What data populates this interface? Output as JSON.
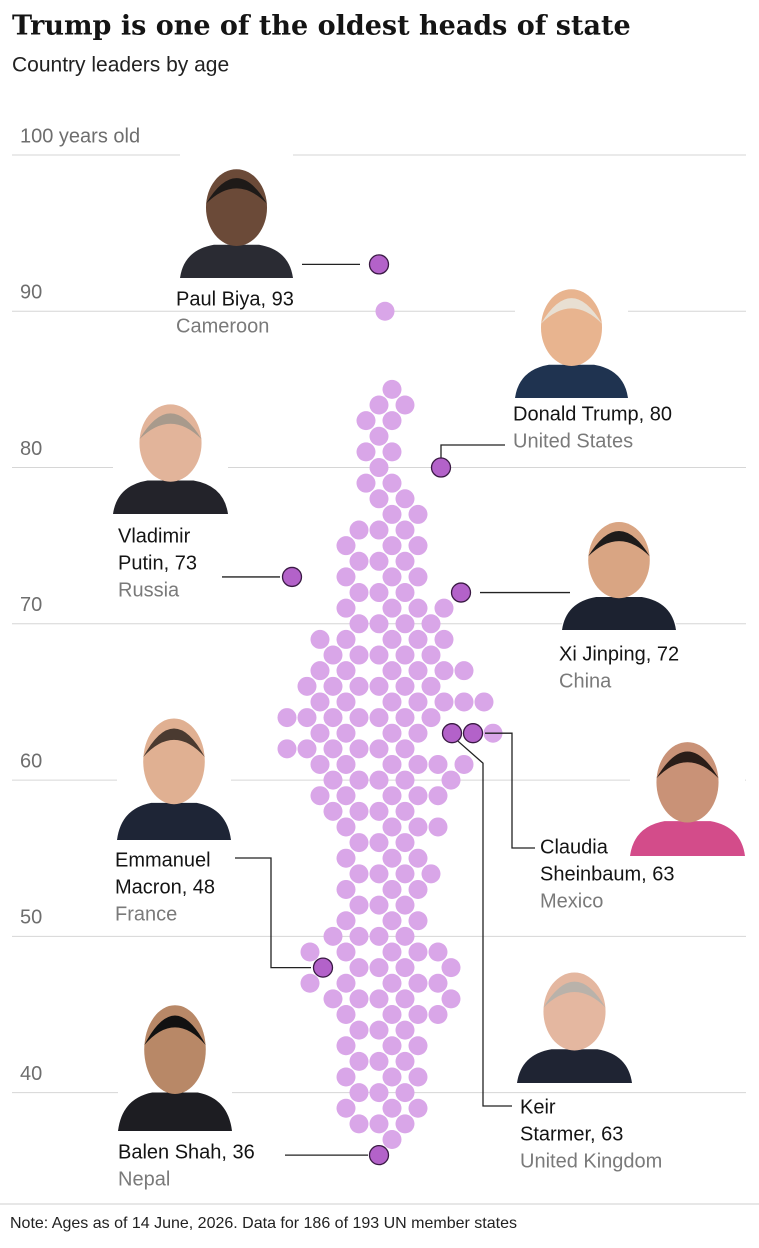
{
  "chart_data": {
    "type": "beeswarm",
    "title": "Trump is one of the oldest heads of state",
    "subtitle": "Country leaders by age",
    "note": "Note: Ages as of 14 June, 2026. Data for 186 of 193 UN member states",
    "ylim": [
      33,
      100
    ],
    "yticks": [
      40,
      50,
      60,
      70,
      80,
      90,
      {
        "value": 100,
        "label": "100 years old"
      }
    ],
    "grid": true,
    "color": "#d9a6e8",
    "highlight_color": "#b362c9",
    "values": [
      37,
      38,
      38,
      38,
      39,
      39,
      39,
      40,
      40,
      40,
      41,
      41,
      41,
      42,
      42,
      42,
      43,
      43,
      43,
      44,
      44,
      44,
      45,
      45,
      45,
      45,
      46,
      46,
      46,
      46,
      46,
      47,
      47,
      47,
      47,
      47,
      48,
      48,
      48,
      48,
      49,
      49,
      49,
      49,
      49,
      50,
      50,
      50,
      50,
      51,
      51,
      51,
      52,
      52,
      52,
      53,
      53,
      53,
      54,
      54,
      54,
      54,
      55,
      55,
      55,
      56,
      56,
      56,
      57,
      57,
      57,
      57,
      58,
      58,
      58,
      58,
      59,
      59,
      59,
      59,
      59,
      60,
      60,
      60,
      60,
      60,
      61,
      61,
      61,
      61,
      61,
      61,
      62,
      62,
      62,
      62,
      62,
      62,
      63,
      63,
      63,
      63,
      63,
      64,
      64,
      64,
      64,
      64,
      64,
      64,
      65,
      65,
      65,
      65,
      65,
      65,
      65,
      66,
      66,
      66,
      66,
      66,
      66,
      67,
      67,
      67,
      67,
      67,
      67,
      68,
      68,
      68,
      68,
      68,
      69,
      69,
      69,
      69,
      69,
      70,
      70,
      70,
      70,
      71,
      71,
      71,
      71,
      72,
      72,
      72,
      73,
      73,
      73,
      74,
      74,
      74,
      75,
      75,
      75,
      76,
      76,
      76,
      77,
      77,
      78,
      78,
      79,
      79,
      80,
      81,
      81,
      82,
      83,
      83,
      84,
      84,
      85,
      90
    ],
    "highlights": [
      {
        "label_lines": [
          "Paul Biya, 93"
        ],
        "country": "Cameroon",
        "value": 93
      },
      {
        "label_lines": [
          "Donald Trump, 80"
        ],
        "country": "United States",
        "value": 80
      },
      {
        "label_lines": [
          "Vladimir",
          "Putin, 73"
        ],
        "country": "Russia",
        "value": 73
      },
      {
        "label_lines": [
          "Xi Jinping, 72"
        ],
        "country": "China",
        "value": 72
      },
      {
        "label_lines": [
          "Claudia",
          "Sheinbaum, 63"
        ],
        "country": "Mexico",
        "value": 63
      },
      {
        "label_lines": [
          "Keir",
          "Starmer, 63"
        ],
        "country": "United Kingdom",
        "value": 63
      },
      {
        "label_lines": [
          "Emmanuel",
          "Macron, 48"
        ],
        "country": "France",
        "value": 48
      },
      {
        "label_lines": [
          "Balen Shah, 36"
        ],
        "country": "Nepal",
        "value": 36
      }
    ]
  }
}
